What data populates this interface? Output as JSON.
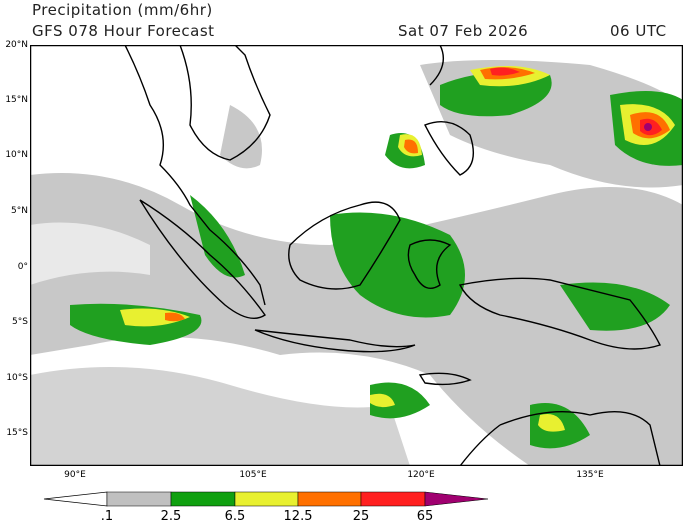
{
  "header": {
    "title": "Precipitation (mm/6hr)",
    "model_line": "GFS 078 Hour Forecast",
    "valid_date": "Sat 07 Feb 2026",
    "valid_time": "06 UTC"
  },
  "map": {
    "lat_labels": [
      "20°N",
      "15°N",
      "10°N",
      "5°N",
      "0°",
      "5°S",
      "10°S",
      "15°S"
    ],
    "lon_labels": [
      "90°E",
      "105°E",
      "120°E",
      "135°E"
    ],
    "background_color": "#ffffff",
    "coastline_color": "#000000"
  },
  "colorbar": {
    "labels": [
      ".1",
      "2.5",
      "6.5",
      "12.5",
      "25",
      "65"
    ],
    "colors": [
      "#ffffff",
      "#c0c0c0",
      "#10a010",
      "#e8f030",
      "#ff7000",
      "#ff2020",
      "#a00070"
    ]
  }
}
